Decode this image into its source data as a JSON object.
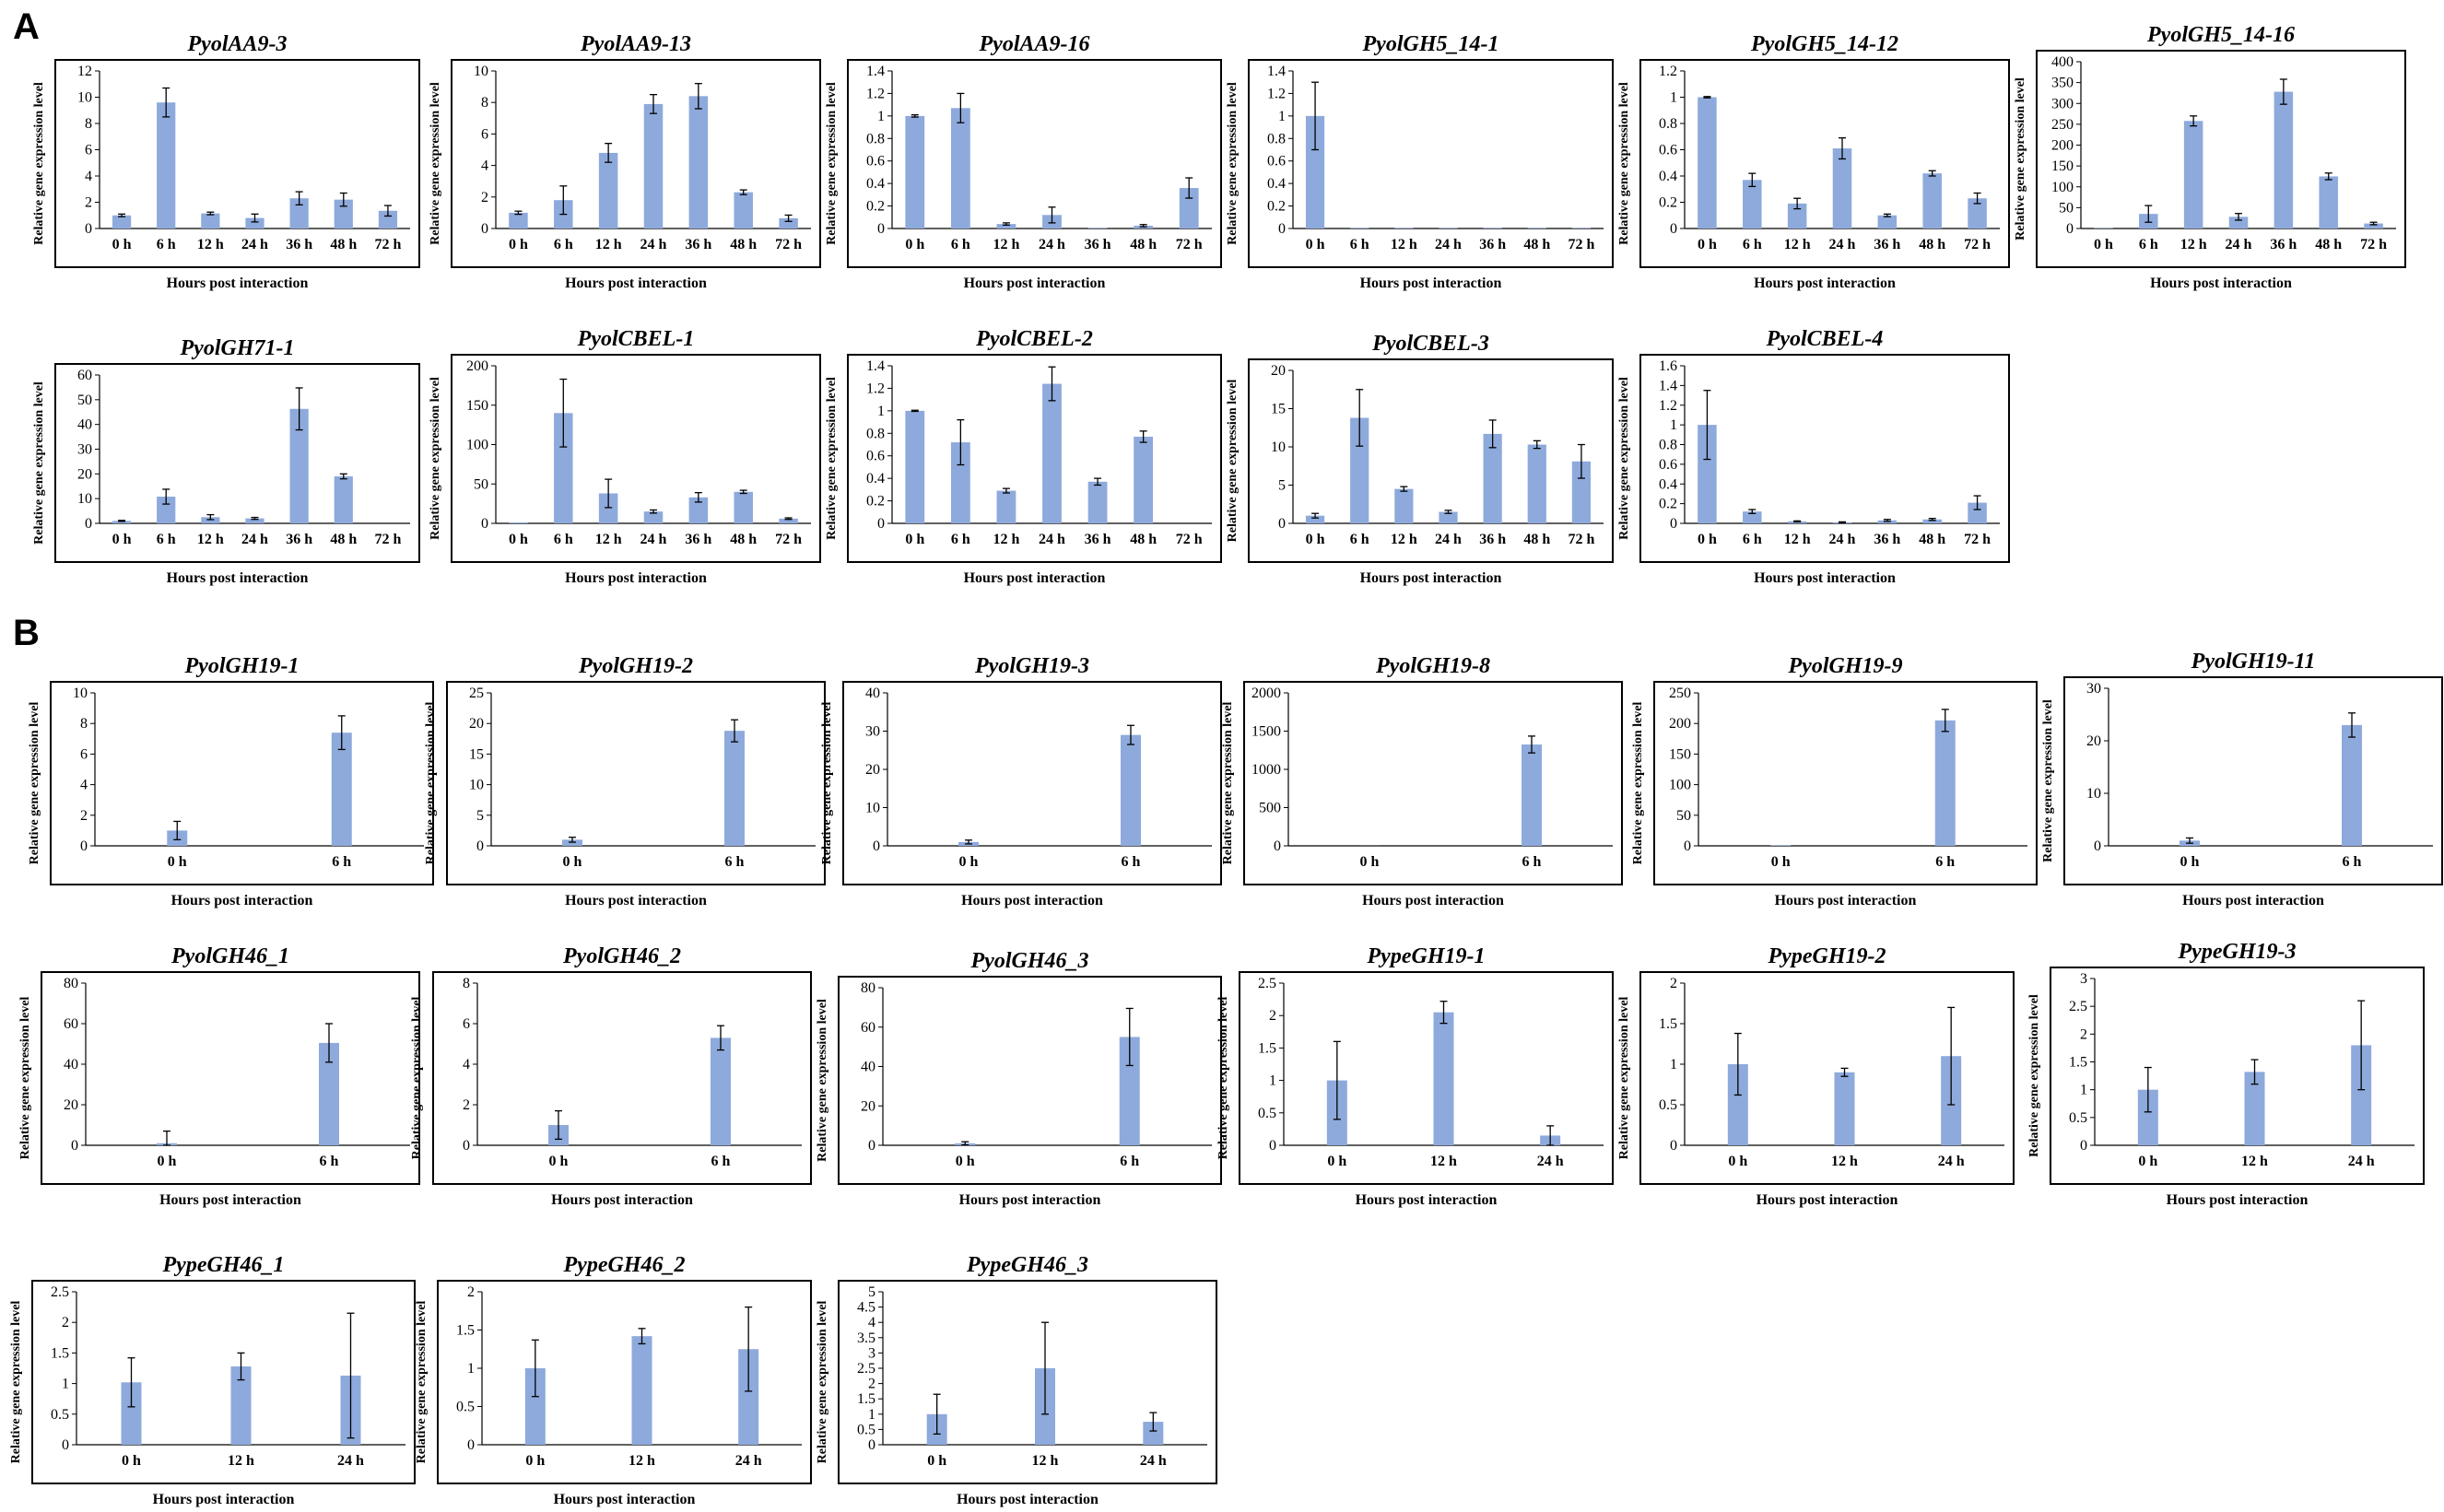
{
  "panels": [
    {
      "id": "A",
      "label": "A"
    },
    {
      "id": "B",
      "label": "B"
    }
  ],
  "chart_data": [
    {
      "panel": "A",
      "type": "bar",
      "title": "PyolAA9-3",
      "categories": [
        "0 h",
        "6 h",
        "12 h",
        "24 h",
        "36 h",
        "48 h",
        "72 h"
      ],
      "values": [
        1,
        9.6,
        1.15,
        0.8,
        2.3,
        2.2,
        1.35
      ],
      "errors": [
        0.1,
        1.1,
        0.1,
        0.3,
        0.5,
        0.5,
        0.4
      ],
      "yticks": [
        "0",
        "2",
        "4",
        "6",
        "8",
        "10",
        "12"
      ],
      "ylim": [
        0,
        12
      ],
      "xlabel": "Hours post interaction",
      "ylabel": "Relative gene expression level"
    },
    {
      "panel": "A",
      "type": "bar",
      "title": "PyolAA9-13",
      "categories": [
        "0 h",
        "6 h",
        "12 h",
        "24 h",
        "36 h",
        "48 h",
        "72 h"
      ],
      "values": [
        1,
        1.8,
        4.8,
        7.9,
        8.4,
        2.3,
        0.65
      ],
      "errors": [
        0.1,
        0.9,
        0.6,
        0.6,
        0.8,
        0.15,
        0.2
      ],
      "yticks": [
        "0",
        "2",
        "4",
        "6",
        "8",
        "10"
      ],
      "ylim": [
        0,
        10
      ],
      "xlabel": "Hours post interaction",
      "ylabel": "Relative gene expression level"
    },
    {
      "panel": "A",
      "type": "bar",
      "title": "PyolAA9-16",
      "categories": [
        "0 h",
        "6 h",
        "12 h",
        "24 h",
        "36 h",
        "48 h",
        "72 h"
      ],
      "values": [
        1,
        1.07,
        0.04,
        0.12,
        0.005,
        0.025,
        0.36
      ],
      "errors": [
        0.01,
        0.13,
        0.01,
        0.07,
        0.0,
        0.01,
        0.09
      ],
      "yticks": [
        "0",
        "0.2",
        "0.4",
        "0.6",
        "0.8",
        "1",
        "1.2",
        "1.4"
      ],
      "ylim": [
        0,
        1.4
      ],
      "xlabel": "Hours post interaction",
      "ylabel": "Relative gene expression level"
    },
    {
      "panel": "A",
      "type": "bar",
      "title": "PyolGH5_14-1",
      "categories": [
        "0 h",
        "6 h",
        "12 h",
        "24 h",
        "36 h",
        "48 h",
        "72 h"
      ],
      "values": [
        1,
        0.005,
        0.005,
        0.005,
        0.005,
        0.005,
        0.005
      ],
      "errors": [
        0.3,
        0,
        0,
        0,
        0,
        0,
        0
      ],
      "yticks": [
        "0",
        "0.2",
        "0.4",
        "0.6",
        "0.8",
        "1",
        "1.2",
        "1.4"
      ],
      "ylim": [
        0,
        1.4
      ],
      "xlabel": "Hours post interaction",
      "ylabel": "Relative gene expression level"
    },
    {
      "panel": "A",
      "type": "bar",
      "title": "PyolGH5_14-12",
      "categories": [
        "0 h",
        "6 h",
        "12 h",
        "24 h",
        "36 h",
        "48 h",
        "72 h"
      ],
      "values": [
        1,
        0.37,
        0.19,
        0.61,
        0.1,
        0.42,
        0.23
      ],
      "errors": [
        0.005,
        0.05,
        0.04,
        0.08,
        0.01,
        0.02,
        0.04
      ],
      "yticks": [
        "0",
        "0.2",
        "0.4",
        "0.6",
        "0.8",
        "1",
        "1.2"
      ],
      "ylim": [
        0,
        1.2
      ],
      "xlabel": "Hours post interaction",
      "ylabel": "Relative gene expression level"
    },
    {
      "panel": "A",
      "type": "bar",
      "title": "PyolGH5_14-16",
      "categories": [
        "0 h",
        "6 h",
        "12 h",
        "24 h",
        "36 h",
        "48 h",
        "72 h"
      ],
      "values": [
        1,
        35,
        258,
        28,
        328,
        125,
        12
      ],
      "errors": [
        0,
        20,
        12,
        8,
        30,
        8,
        3
      ],
      "yticks": [
        "0",
        "50",
        "100",
        "150",
        "200",
        "250",
        "300",
        "350",
        "400"
      ],
      "ylim": [
        0,
        400
      ],
      "xlabel": "Hours post interaction",
      "ylabel": "Relative gene expression level"
    },
    {
      "panel": "A",
      "type": "bar",
      "title": "PyolGH71-1",
      "categories": [
        "0 h",
        "6 h",
        "12 h",
        "24 h",
        "36 h",
        "48 h",
        "72 h"
      ],
      "values": [
        1,
        10.8,
        2.5,
        2,
        46.3,
        19,
        0
      ],
      "errors": [
        0.2,
        3,
        1,
        0.4,
        8.5,
        1,
        0
      ],
      "yticks": [
        "0",
        "10",
        "20",
        "30",
        "40",
        "50",
        "60"
      ],
      "ylim": [
        0,
        60
      ],
      "xlabel": "Hours post interaction",
      "ylabel": "Relative gene expression level"
    },
    {
      "panel": "A",
      "type": "bar",
      "title": "PyolCBEL-1",
      "categories": [
        "0 h",
        "6 h",
        "12 h",
        "24 h",
        "36 h",
        "48 h",
        "72 h"
      ],
      "values": [
        1,
        140,
        38,
        15,
        33,
        40,
        6
      ],
      "errors": [
        0,
        43,
        18,
        2,
        6,
        2,
        1
      ],
      "yticks": [
        "0",
        "50",
        "100",
        "150",
        "200"
      ],
      "ylim": [
        0,
        200
      ],
      "xlabel": "Hours post interaction",
      "ylabel": "Relative gene expression level"
    },
    {
      "panel": "A",
      "type": "bar",
      "title": "PyolCBEL-2",
      "categories": [
        "0 h",
        "6 h",
        "12 h",
        "24 h",
        "36 h",
        "48 h",
        "72 h"
      ],
      "values": [
        1,
        0.72,
        0.29,
        1.24,
        0.37,
        0.77,
        0
      ],
      "errors": [
        0.005,
        0.2,
        0.02,
        0.15,
        0.03,
        0.05,
        0
      ],
      "yticks": [
        "0",
        "0.2",
        "0.4",
        "0.6",
        "0.8",
        "1",
        "1.2",
        "1.4"
      ],
      "ylim": [
        0,
        1.4
      ],
      "xlabel": "Hours post interaction",
      "ylabel": "Relative gene expression level"
    },
    {
      "panel": "A",
      "type": "bar",
      "title": "PyolCBEL-3",
      "categories": [
        "0 h",
        "6 h",
        "12 h",
        "24 h",
        "36 h",
        "48 h",
        "72 h"
      ],
      "values": [
        1,
        13.8,
        4.5,
        1.5,
        11.7,
        10.3,
        8.1
      ],
      "errors": [
        0.3,
        3.7,
        0.3,
        0.2,
        1.8,
        0.5,
        2.2
      ],
      "yticks": [
        "0",
        "5",
        "10",
        "15",
        "20"
      ],
      "ylim": [
        0,
        20
      ],
      "xlabel": "Hours post interaction",
      "ylabel": "Relative gene expression level"
    },
    {
      "panel": "A",
      "type": "bar",
      "title": "PyolCBEL-4",
      "categories": [
        "0 h",
        "6 h",
        "12 h",
        "24 h",
        "36 h",
        "48 h",
        "72 h"
      ],
      "values": [
        1,
        0.12,
        0.02,
        0.01,
        0.03,
        0.04,
        0.21
      ],
      "errors": [
        0.35,
        0.02,
        0.005,
        0.005,
        0.01,
        0.01,
        0.07
      ],
      "yticks": [
        "0",
        "0.2",
        "0.4",
        "0.6",
        "0.8",
        "1",
        "1.2",
        "1.4",
        "1.6"
      ],
      "ylim": [
        0,
        1.6
      ],
      "xlabel": "Hours post interaction",
      "ylabel": "Relative gene expression level"
    },
    {
      "panel": "B",
      "type": "bar",
      "title": "PyolGH19-1",
      "categories": [
        "0 h",
        "6 h"
      ],
      "values": [
        1,
        7.4
      ],
      "errors": [
        0.6,
        1.1
      ],
      "yticks": [
        "0",
        "2",
        "4",
        "6",
        "8",
        "10"
      ],
      "ylim": [
        0,
        10
      ],
      "xlabel": "Hours post interaction",
      "ylabel": "Relative gene expression level"
    },
    {
      "panel": "B",
      "type": "bar",
      "title": "PyolGH19-2",
      "categories": [
        "0 h",
        "6 h"
      ],
      "values": [
        1,
        18.8
      ],
      "errors": [
        0.4,
        1.8
      ],
      "yticks": [
        "0",
        "5",
        "10",
        "15",
        "20",
        "25"
      ],
      "ylim": [
        0,
        25
      ],
      "xlabel": "Hours post interaction",
      "ylabel": "Relative gene expression level"
    },
    {
      "panel": "B",
      "type": "bar",
      "title": "PyolGH19-3",
      "categories": [
        "0 h",
        "6 h"
      ],
      "values": [
        1,
        29
      ],
      "errors": [
        0.5,
        2.5
      ],
      "yticks": [
        "0",
        "10",
        "20",
        "30",
        "40"
      ],
      "ylim": [
        0,
        40
      ],
      "xlabel": "Hours post interaction",
      "ylabel": "Relative gene expression level"
    },
    {
      "panel": "B",
      "type": "bar",
      "title": "PyolGH19-8",
      "categories": [
        "0 h",
        "6 h"
      ],
      "values": [
        1,
        1325
      ],
      "errors": [
        0,
        110
      ],
      "yticks": [
        "0",
        "500",
        "1000",
        "1500",
        "2000"
      ],
      "ylim": [
        0,
        2000
      ],
      "xlabel": "Hours post interaction",
      "ylabel": "Relative gene expression level"
    },
    {
      "panel": "B",
      "type": "bar",
      "title": "PyolGH19-9",
      "categories": [
        "0 h",
        "6 h"
      ],
      "values": [
        1,
        205
      ],
      "errors": [
        0,
        18
      ],
      "yticks": [
        "0",
        "50",
        "100",
        "150",
        "200",
        "250"
      ],
      "ylim": [
        0,
        250
      ],
      "xlabel": "Hours post interaction",
      "ylabel": "Relative gene expression level"
    },
    {
      "panel": "B",
      "type": "bar",
      "title": "PyolGH19-11",
      "categories": [
        "0 h",
        "6 h"
      ],
      "values": [
        1,
        23
      ],
      "errors": [
        0.5,
        2.3
      ],
      "yticks": [
        "0",
        "10",
        "20",
        "30"
      ],
      "ylim": [
        0,
        30
      ],
      "xlabel": "Hours post interaction",
      "ylabel": "Relative gene expression level"
    },
    {
      "panel": "B",
      "type": "bar",
      "title": "PyolGH46_1",
      "categories": [
        "0 h",
        "6 h"
      ],
      "values": [
        1,
        50.5
      ],
      "errors": [
        6,
        9.5
      ],
      "yticks": [
        "0",
        "20",
        "40",
        "60",
        "80"
      ],
      "ylim": [
        0,
        80
      ],
      "xlabel": "Hours post interaction",
      "ylabel": "Relative gene expression level"
    },
    {
      "panel": "B",
      "type": "bar",
      "title": "PyolGH46_2",
      "categories": [
        "0 h",
        "6 h"
      ],
      "values": [
        1,
        5.3
      ],
      "errors": [
        0.7,
        0.6
      ],
      "yticks": [
        "0",
        "2",
        "4",
        "6",
        "8"
      ],
      "ylim": [
        0,
        8
      ],
      "xlabel": "Hours post interaction",
      "ylabel": "Relative gene expression level"
    },
    {
      "panel": "B",
      "type": "bar",
      "title": "PyolGH46_3",
      "categories": [
        "0 h",
        "6 h"
      ],
      "values": [
        1,
        55
      ],
      "errors": [
        0.8,
        14.5
      ],
      "yticks": [
        "0",
        "20",
        "40",
        "60",
        "80"
      ],
      "ylim": [
        0,
        80
      ],
      "xlabel": "Hours post interaction",
      "ylabel": "Relative gene expression level"
    },
    {
      "panel": "B",
      "type": "bar",
      "title": "PypeGH19-1",
      "categories": [
        "0 h",
        "12 h",
        "24 h"
      ],
      "values": [
        1,
        2.05,
        0.15
      ],
      "errors": [
        0.6,
        0.17,
        0.15
      ],
      "yticks": [
        "0",
        "0.5",
        "1",
        "1.5",
        "2",
        "2.5"
      ],
      "ylim": [
        0,
        2.5
      ],
      "xlabel": "Hours post interaction",
      "ylabel": "Relative gene expression level"
    },
    {
      "panel": "B",
      "type": "bar",
      "title": "PypeGH19-2",
      "categories": [
        "0 h",
        "12 h",
        "24 h"
      ],
      "values": [
        1,
        0.9,
        1.1
      ],
      "errors": [
        0.38,
        0.05,
        0.6
      ],
      "yticks": [
        "0",
        "0.5",
        "1",
        "1.5",
        "2"
      ],
      "ylim": [
        0,
        2
      ],
      "xlabel": "Hours post interaction",
      "ylabel": "Relative gene expression level"
    },
    {
      "panel": "B",
      "type": "bar",
      "title": "PypeGH19-3",
      "categories": [
        "0 h",
        "12 h",
        "24 h"
      ],
      "values": [
        1,
        1.32,
        1.8
      ],
      "errors": [
        0.4,
        0.22,
        0.8
      ],
      "yticks": [
        "0",
        "0.5",
        "1",
        "1.5",
        "2",
        "2.5",
        "3"
      ],
      "ylim": [
        0,
        3
      ],
      "xlabel": "Hours post interaction",
      "ylabel": "Relative gene expression level"
    },
    {
      "panel": "B",
      "type": "bar",
      "title": "PypeGH46_1",
      "categories": [
        "0 h",
        "12 h",
        "24 h"
      ],
      "values": [
        1.02,
        1.28,
        1.13
      ],
      "errors": [
        0.4,
        0.22,
        1.02
      ],
      "yticks": [
        "0",
        "0.5",
        "1",
        "1.5",
        "2",
        "2.5"
      ],
      "ylim": [
        0,
        2.5
      ],
      "xlabel": "Hours post interaction",
      "ylabel": "Relative gene expression level"
    },
    {
      "panel": "B",
      "type": "bar",
      "title": "PypeGH46_2",
      "categories": [
        "0 h",
        "12 h",
        "24 h"
      ],
      "values": [
        1,
        1.42,
        1.25
      ],
      "errors": [
        0.37,
        0.1,
        0.55
      ],
      "yticks": [
        "0",
        "0.5",
        "1",
        "1.5",
        "2"
      ],
      "ylim": [
        0,
        2
      ],
      "xlabel": "Hours post interaction",
      "ylabel": "Relative gene expression level"
    },
    {
      "panel": "B",
      "type": "bar",
      "title": "PypeGH46_3",
      "categories": [
        "0 h",
        "12 h",
        "24 h"
      ],
      "values": [
        1,
        2.5,
        0.75
      ],
      "errors": [
        0.65,
        1.5,
        0.3
      ],
      "yticks": [
        "0",
        "0.5",
        "1",
        "1.5",
        "2",
        "2.5",
        "3",
        "3.5",
        "4",
        "4.5",
        "5"
      ],
      "ylim": [
        0,
        5
      ],
      "xlabel": "Hours post interaction",
      "ylabel": "Relative gene expression level"
    }
  ],
  "colors": {
    "bar": "#8eaadc",
    "axis": "#000000",
    "frame": "#000000",
    "errorbar": "#000000"
  }
}
